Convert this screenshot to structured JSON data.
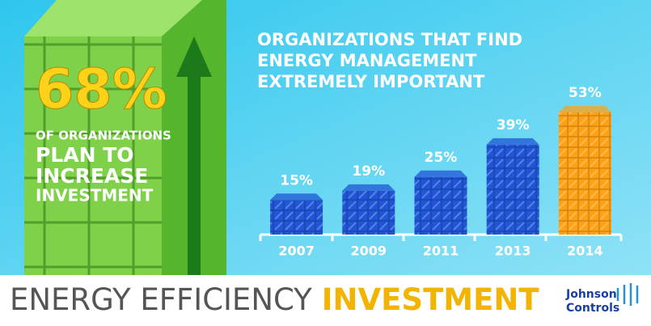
{
  "headline": {
    "figure": "68%",
    "lines": [
      "OF ORGANIZATIONS",
      "PLAN TO",
      "INCREASE",
      "INVESTMENT"
    ]
  },
  "chart_data": {
    "type": "bar",
    "title": [
      "ORGANIZATIONS THAT FIND",
      "ENERGY MANAGEMENT",
      "EXTREMELY IMPORTANT"
    ],
    "categories": [
      "2007",
      "2009",
      "2011",
      "2013",
      "2014"
    ],
    "values": [
      15,
      19,
      25,
      39,
      53
    ],
    "value_labels": [
      "15%",
      "19%",
      "25%",
      "39%",
      "53%"
    ],
    "colors": [
      "#1f55d6",
      "#1f55d6",
      "#1f55d6",
      "#1f55d6",
      "#ffa114"
    ]
  },
  "footer": {
    "title_light": "ENERGY EFFICIENCY",
    "title_bold": "INVESTMENT",
    "brand": [
      "Johnson",
      "Controls"
    ]
  }
}
